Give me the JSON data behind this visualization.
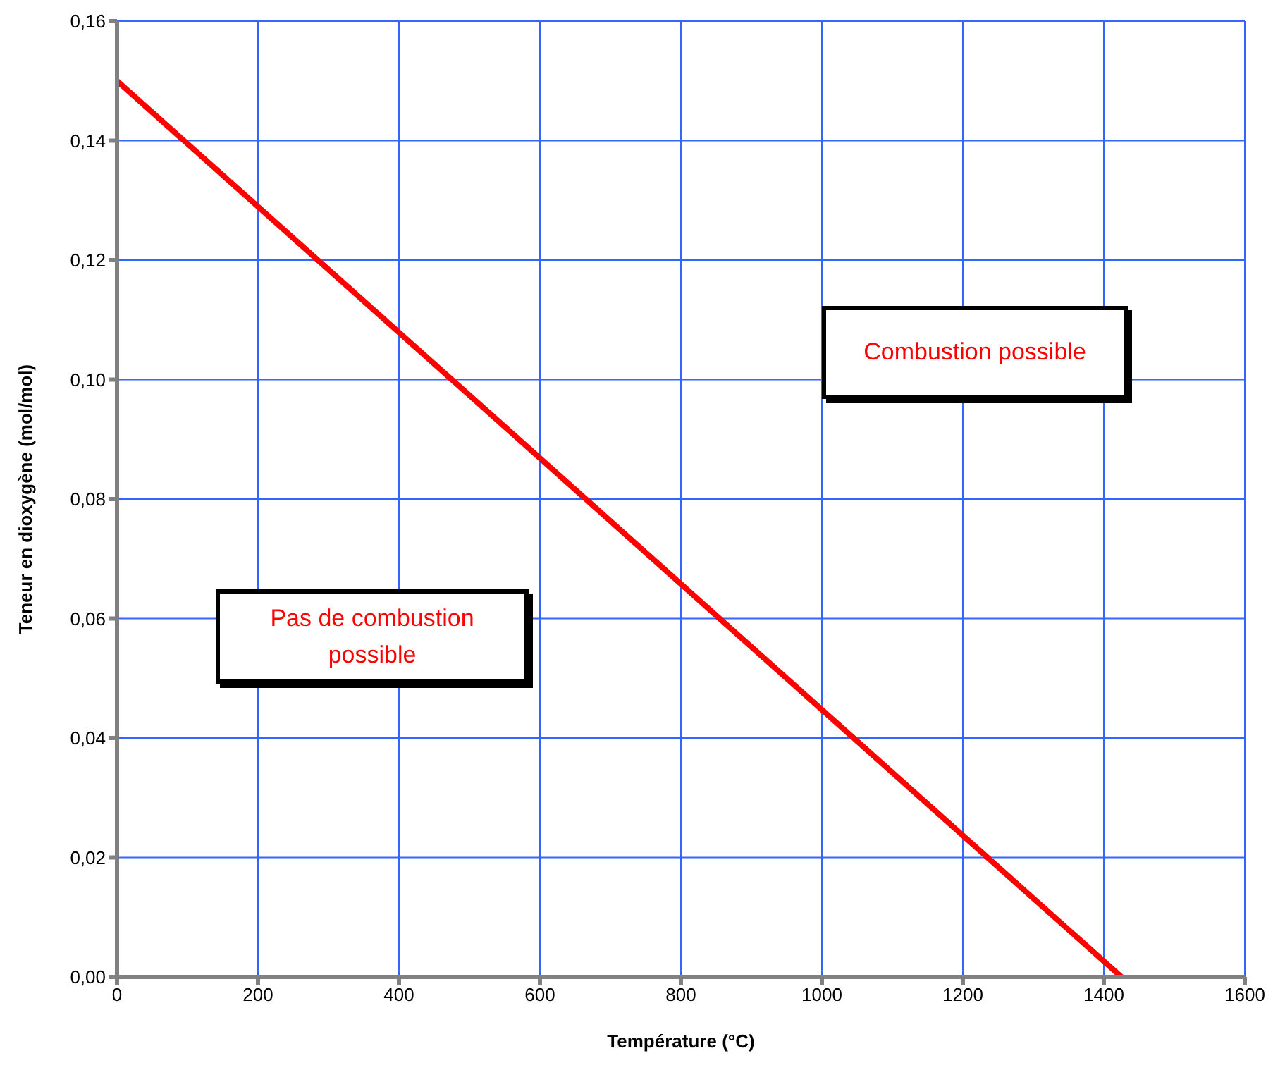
{
  "chart_data": {
    "type": "line",
    "xlabel": "Température (°C)",
    "ylabel": "Teneur en dioxygène (mol/mol)",
    "x": [
      0,
      1425
    ],
    "series": [
      {
        "color": "#ff0000",
        "values": [
          0.15,
          0
        ]
      }
    ],
    "xlim": [
      0,
      1600
    ],
    "xticks": [
      0,
      200,
      400,
      600,
      800,
      1000,
      1200,
      1400,
      1600
    ],
    "ylim": [
      0,
      0.16
    ],
    "yticks": [
      {
        "value": 0,
        "label": "0,00"
      },
      {
        "value": 0.02,
        "label": "0,02"
      },
      {
        "value": 0.04,
        "label": "0,04"
      },
      {
        "value": 0.06,
        "label": "0,06"
      },
      {
        "value": 0.08,
        "label": "0,08"
      },
      {
        "value": 0.1,
        "label": "0,10"
      },
      {
        "value": 0.12,
        "label": "0,12"
      },
      {
        "value": 0.14,
        "label": "0,14"
      },
      {
        "value": 0.16,
        "label": "0,16"
      }
    ],
    "grid": true,
    "marker": "none",
    "line_style": "solid",
    "annotations": [
      "Combustion possible",
      "Pas de combustion possible"
    ]
  }
}
